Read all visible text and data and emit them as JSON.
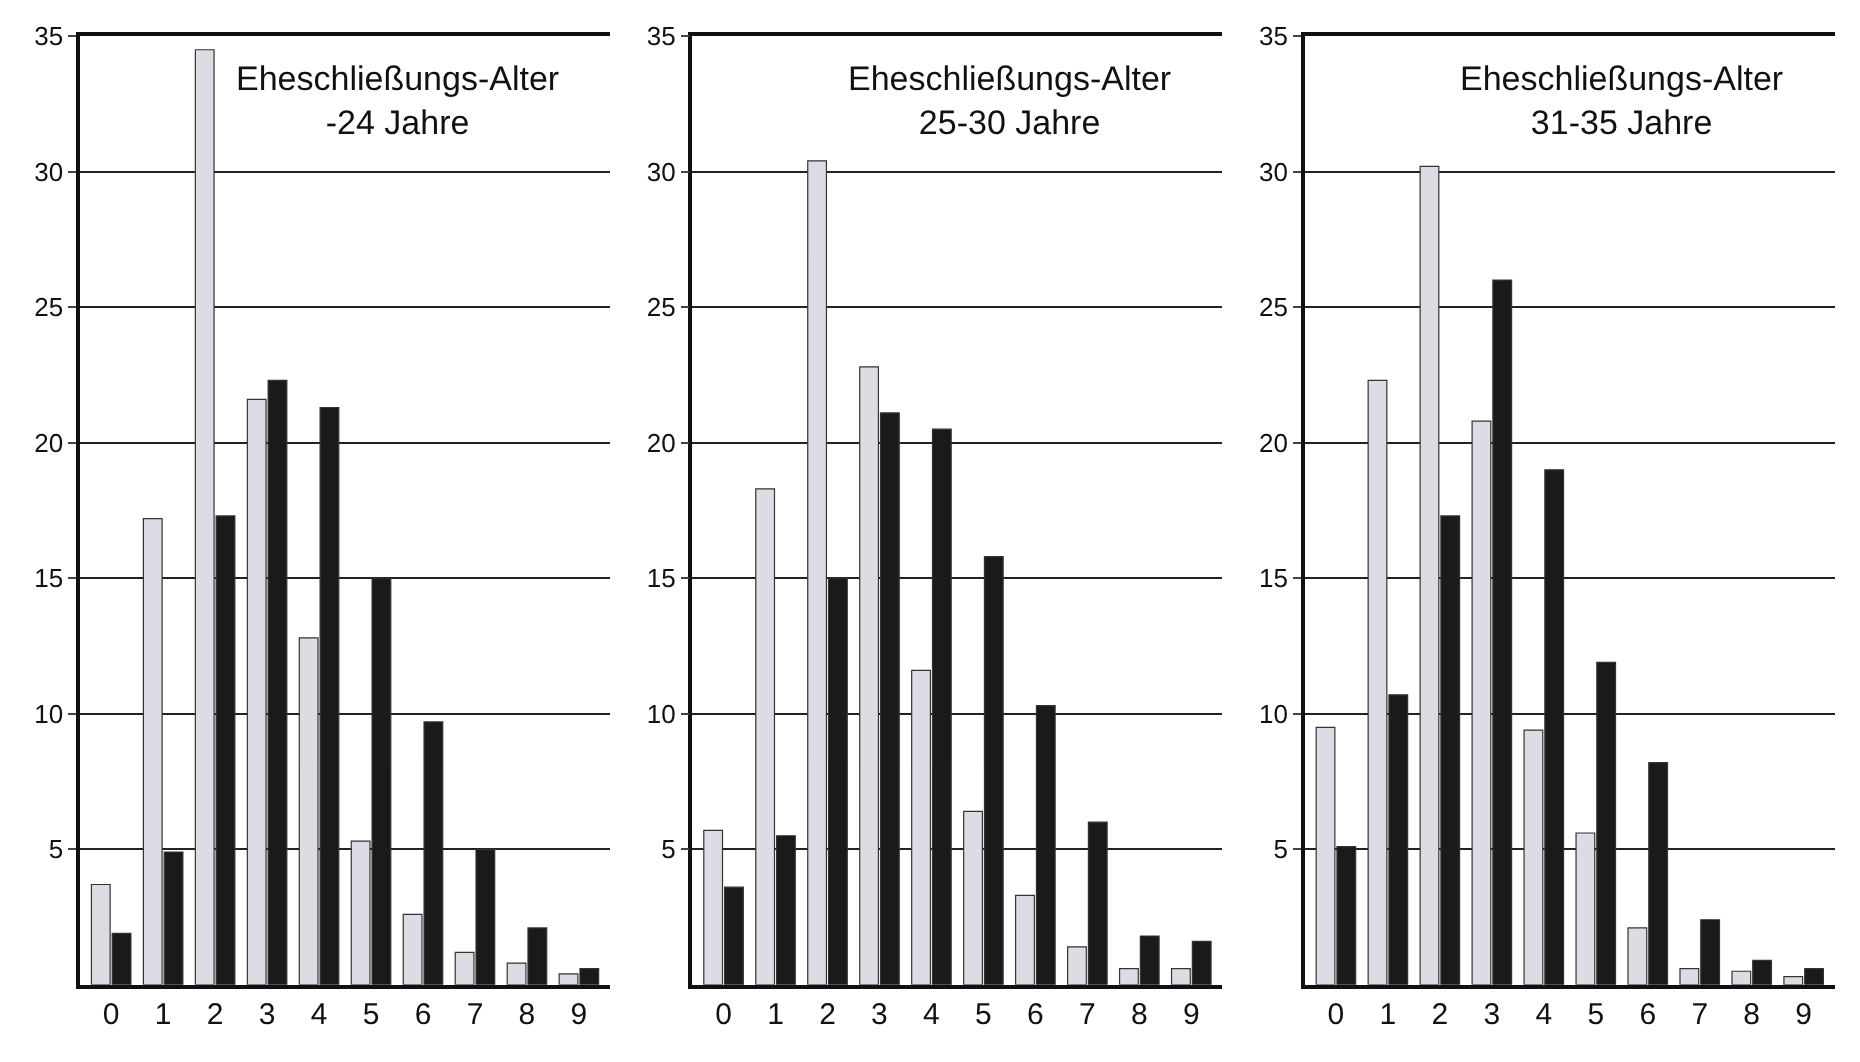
{
  "chart_data": [
    {
      "type": "bar",
      "title": "Eheschließungs-Alter\n-24 Jahre",
      "categories": [
        "0",
        "1",
        "2",
        "3",
        "4",
        "5",
        "6",
        "7",
        "8",
        "9"
      ],
      "ylim": [
        0,
        35
      ],
      "yticks": [
        5,
        10,
        15,
        20,
        25,
        30,
        35
      ],
      "grid": "y",
      "series": [
        {
          "color": "#dcdce4",
          "values": [
            3.7,
            17.2,
            34.5,
            21.6,
            12.8,
            5.3,
            2.6,
            1.2,
            0.8,
            0.4
          ]
        },
        {
          "color": "#1a1a1a",
          "values": [
            1.9,
            4.9,
            17.3,
            22.3,
            21.3,
            15.0,
            9.7,
            5.0,
            2.1,
            0.6
          ]
        }
      ]
    },
    {
      "type": "bar",
      "title": "Eheschließungs-Alter\n25-30 Jahre",
      "categories": [
        "0",
        "1",
        "2",
        "3",
        "4",
        "5",
        "6",
        "7",
        "8",
        "9"
      ],
      "ylim": [
        0,
        35
      ],
      "yticks": [
        5,
        10,
        15,
        20,
        25,
        30,
        35
      ],
      "grid": "y",
      "series": [
        {
          "color": "#dcdce4",
          "values": [
            5.7,
            18.3,
            30.4,
            22.8,
            11.6,
            6.4,
            3.3,
            1.4,
            0.6,
            0.6
          ]
        },
        {
          "color": "#1a1a1a",
          "values": [
            3.6,
            5.5,
            15.0,
            21.1,
            20.5,
            15.8,
            10.3,
            6.0,
            1.8,
            1.6
          ]
        }
      ]
    },
    {
      "type": "bar",
      "title": "Eheschließungs-Alter\n31-35 Jahre",
      "categories": [
        "0",
        "1",
        "2",
        "3",
        "4",
        "5",
        "6",
        "7",
        "8",
        "9"
      ],
      "ylim": [
        0,
        35
      ],
      "yticks": [
        5,
        10,
        15,
        20,
        25,
        30,
        35
      ],
      "grid": "y",
      "series": [
        {
          "color": "#dcdce4",
          "values": [
            9.5,
            22.3,
            30.2,
            20.8,
            9.4,
            5.6,
            2.1,
            0.6,
            0.5,
            0.3
          ]
        },
        {
          "color": "#1a1a1a",
          "values": [
            5.1,
            10.7,
            17.3,
            26.0,
            19.0,
            11.9,
            8.2,
            2.4,
            0.9,
            0.6
          ]
        }
      ]
    }
  ]
}
